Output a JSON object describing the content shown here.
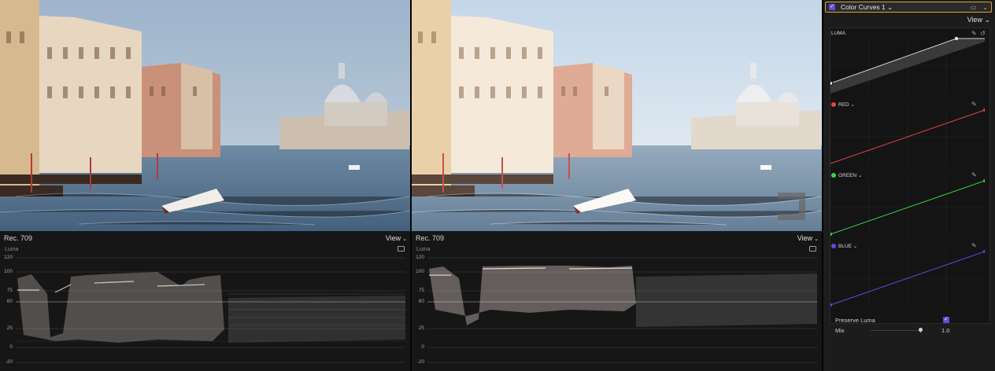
{
  "scopes": [
    {
      "title": "Rec. 709",
      "view_label": "View",
      "subtitle": "Luma",
      "ticks": [
        "120",
        "100",
        "75",
        "60",
        "25",
        "0",
        "-20"
      ]
    },
    {
      "title": "Rec. 709",
      "view_label": "View",
      "subtitle": "Luma",
      "ticks": [
        "120",
        "100",
        "75",
        "60",
        "25",
        "0",
        "-20"
      ]
    }
  ],
  "inspector": {
    "effect_title": "Color Curves 1",
    "view_label": "View",
    "luma_label": "LUMA",
    "red_label": "RED",
    "green_label": "GREEN",
    "blue_label": "BLUE",
    "preserve_luma_label": "Preserve Luma",
    "mix_label": "Mix",
    "mix_value": "1.0",
    "colors": {
      "red": "#e84545",
      "green": "#3fd14a",
      "blue": "#5a4fe8",
      "accent": "#d9a62e"
    }
  }
}
